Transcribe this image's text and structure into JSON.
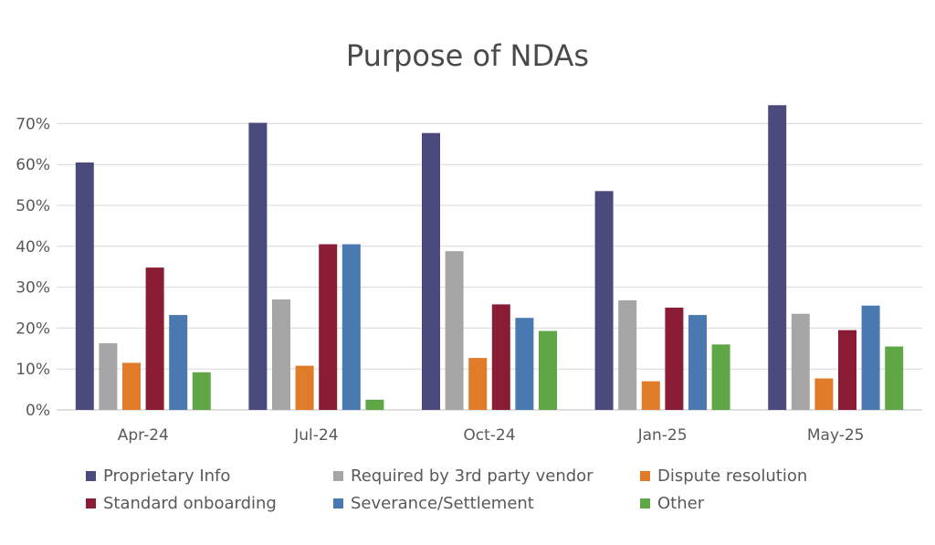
{
  "chart_data": {
    "type": "bar",
    "title": "Purpose of NDAs",
    "categories": [
      "Apr-24",
      "Jul-24",
      "Oct-24",
      "Jan-25",
      "May-25"
    ],
    "yticks": [
      "0%",
      "10%",
      "20%",
      "30%",
      "40%",
      "50%",
      "60%",
      "70%"
    ],
    "ylim": [
      0,
      0.75
    ],
    "grid": true,
    "legend_position": "bottom",
    "series": [
      {
        "name": "Proprietary Info",
        "color": "#4a4a7d",
        "values": [
          0.605,
          0.702,
          0.677,
          0.535,
          0.745
        ]
      },
      {
        "name": "Required by 3rd party vendor",
        "color": "#a6a6a6",
        "values": [
          0.163,
          0.27,
          0.388,
          0.268,
          0.235
        ]
      },
      {
        "name": "Dispute resolution",
        "color": "#e07b2a",
        "values": [
          0.115,
          0.108,
          0.127,
          0.07,
          0.077
        ]
      },
      {
        "name": "Standard onboarding",
        "color": "#8b1c36",
        "values": [
          0.348,
          0.405,
          0.258,
          0.25,
          0.195
        ]
      },
      {
        "name": "Severance/Settlement",
        "color": "#4a78b0",
        "values": [
          0.232,
          0.405,
          0.225,
          0.232,
          0.255
        ]
      },
      {
        "name": "Other",
        "color": "#5fa646",
        "values": [
          0.092,
          0.025,
          0.193,
          0.16,
          0.155
        ]
      }
    ]
  }
}
